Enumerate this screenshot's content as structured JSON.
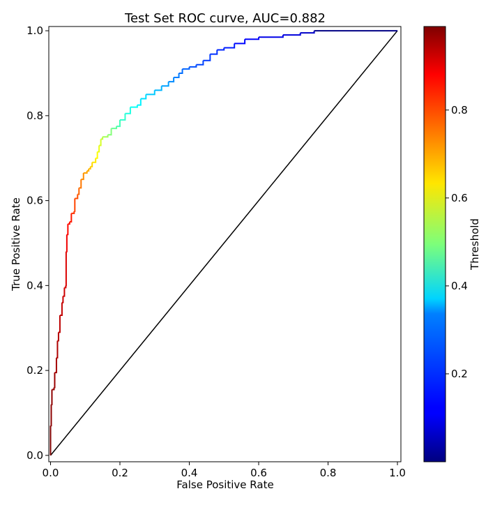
{
  "chart_data": {
    "type": "line",
    "title": "Test Set ROC curve, AUC=0.882",
    "xlabel": "False Positive Rate",
    "ylabel": "True Positive Rate",
    "xlim": [
      -0.005,
      1.01
    ],
    "ylim": [
      -0.015,
      1.01
    ],
    "x_ticks": [
      "0.0",
      "0.2",
      "0.4",
      "0.6",
      "0.8",
      "1.0"
    ],
    "y_ticks": [
      "0.0",
      "0.2",
      "0.4",
      "0.6",
      "0.8",
      "1.0"
    ],
    "series": [
      {
        "points": [
          [
            0.0,
            0.0,
            1.0
          ],
          [
            0.0,
            0.07,
            0.99
          ],
          [
            0.002,
            0.12,
            0.98
          ],
          [
            0.004,
            0.155,
            0.975
          ],
          [
            0.01,
            0.16,
            0.97
          ],
          [
            0.012,
            0.195,
            0.965
          ],
          [
            0.017,
            0.23,
            0.955
          ],
          [
            0.02,
            0.27,
            0.945
          ],
          [
            0.023,
            0.29,
            0.94
          ],
          [
            0.027,
            0.33,
            0.93
          ],
          [
            0.033,
            0.36,
            0.925
          ],
          [
            0.036,
            0.375,
            0.92
          ],
          [
            0.04,
            0.395,
            0.915
          ],
          [
            0.044,
            0.4,
            0.91
          ],
          [
            0.045,
            0.48,
            0.9
          ],
          [
            0.047,
            0.52,
            0.88
          ],
          [
            0.05,
            0.545,
            0.86
          ],
          [
            0.055,
            0.55,
            0.85
          ],
          [
            0.06,
            0.57,
            0.84
          ],
          [
            0.068,
            0.575,
            0.82
          ],
          [
            0.07,
            0.605,
            0.8
          ],
          [
            0.078,
            0.615,
            0.79
          ],
          [
            0.082,
            0.63,
            0.77
          ],
          [
            0.088,
            0.65,
            0.75
          ],
          [
            0.095,
            0.665,
            0.73
          ],
          [
            0.105,
            0.67,
            0.71
          ],
          [
            0.11,
            0.675,
            0.7
          ],
          [
            0.115,
            0.68,
            0.68
          ],
          [
            0.12,
            0.69,
            0.66
          ],
          [
            0.13,
            0.7,
            0.64
          ],
          [
            0.135,
            0.715,
            0.62
          ],
          [
            0.14,
            0.73,
            0.6
          ],
          [
            0.145,
            0.745,
            0.58
          ],
          [
            0.15,
            0.75,
            0.56
          ],
          [
            0.165,
            0.755,
            0.53
          ],
          [
            0.175,
            0.77,
            0.5
          ],
          [
            0.19,
            0.775,
            0.47
          ],
          [
            0.2,
            0.79,
            0.44
          ],
          [
            0.215,
            0.805,
            0.42
          ],
          [
            0.23,
            0.82,
            0.4
          ],
          [
            0.25,
            0.825,
            0.38
          ],
          [
            0.26,
            0.84,
            0.36
          ],
          [
            0.275,
            0.85,
            0.34
          ],
          [
            0.3,
            0.86,
            0.32
          ],
          [
            0.32,
            0.87,
            0.3
          ],
          [
            0.34,
            0.88,
            0.28
          ],
          [
            0.355,
            0.89,
            0.26
          ],
          [
            0.37,
            0.9,
            0.245
          ],
          [
            0.38,
            0.91,
            0.23
          ],
          [
            0.4,
            0.915,
            0.22
          ],
          [
            0.42,
            0.92,
            0.2
          ],
          [
            0.44,
            0.93,
            0.19
          ],
          [
            0.46,
            0.945,
            0.18
          ],
          [
            0.48,
            0.955,
            0.17
          ],
          [
            0.5,
            0.96,
            0.16
          ],
          [
            0.53,
            0.97,
            0.15
          ],
          [
            0.56,
            0.98,
            0.13
          ],
          [
            0.6,
            0.985,
            0.12
          ],
          [
            0.67,
            0.99,
            0.1
          ],
          [
            0.72,
            0.995,
            0.09
          ],
          [
            0.76,
            1.0,
            0.07
          ],
          [
            1.0,
            1.0,
            0.005
          ]
        ]
      },
      {
        "points": [
          [
            0.0,
            0.0
          ],
          [
            1.0,
            1.0
          ]
        ],
        "color": "#000000"
      }
    ],
    "colorbar": {
      "label": "Threshold",
      "range": [
        0.0,
        0.99
      ],
      "colormap": "jet",
      "ticks": [
        "0.2",
        "0.4",
        "0.6",
        "0.8"
      ]
    },
    "grid": false,
    "legend": "none"
  }
}
